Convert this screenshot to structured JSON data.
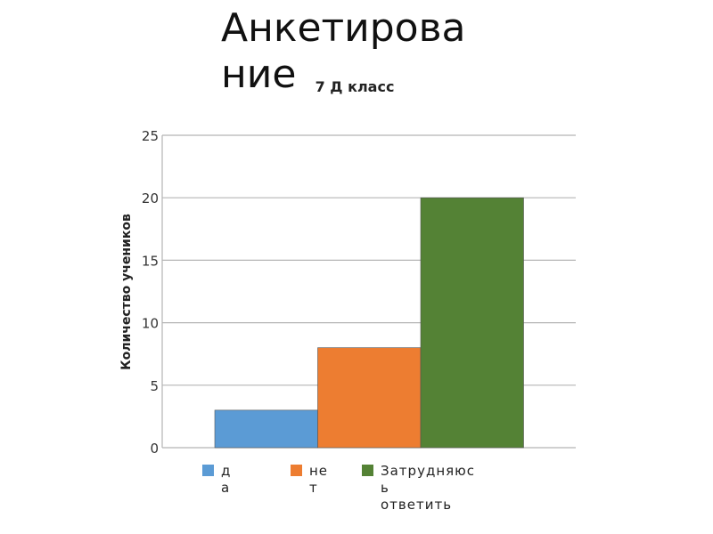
{
  "slide": {
    "title": "Анкетирование"
  },
  "chart_data": {
    "type": "bar",
    "title": "7 Д класс",
    "ylabel": "Количество учеников",
    "xlabel": "",
    "categories": [
      "да",
      "нет",
      "Затрудняюсь ответить"
    ],
    "values": [
      3,
      8,
      20
    ],
    "ylim": [
      0,
      25
    ],
    "yticks": [
      0,
      5,
      10,
      15,
      20,
      25
    ],
    "grid": true,
    "legend_placement": "bottom",
    "colors": [
      "#5b9bd5",
      "#ed7d31",
      "#548235"
    ],
    "legend_lines": [
      [
        "д",
        "а"
      ],
      [
        "не",
        "т"
      ],
      [
        "Затрудняюс",
        "ь",
        "ответить"
      ]
    ]
  }
}
